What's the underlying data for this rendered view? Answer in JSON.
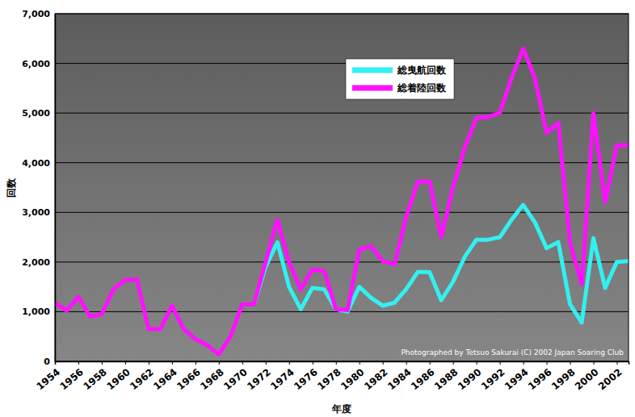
{
  "chart_data": {
    "type": "line",
    "x_label": "年度",
    "y_label": "回数",
    "annotations": [
      "Photographed by Tetsuo Sakurai (C) 2002 Japan Soaring Club"
    ],
    "x": [
      1954,
      1955,
      1956,
      1957,
      1958,
      1959,
      1960,
      1961,
      1962,
      1963,
      1964,
      1965,
      1966,
      1967,
      1968,
      1969,
      1970,
      1971,
      1972,
      1973,
      1974,
      1975,
      1976,
      1977,
      1978,
      1979,
      1980,
      1981,
      1982,
      1983,
      1984,
      1985,
      1986,
      1987,
      1988,
      1989,
      1990,
      1991,
      1992,
      1993,
      1994,
      1995,
      1996,
      1997,
      1998,
      1999,
      2000,
      2001,
      2002,
      2003
    ],
    "series": [
      {
        "name": "総曳航回数",
        "color": "#33f0f0",
        "values": [
          null,
          null,
          null,
          null,
          null,
          null,
          null,
          null,
          null,
          null,
          null,
          null,
          null,
          null,
          null,
          null,
          null,
          1150,
          1900,
          2400,
          1500,
          1050,
          1480,
          1450,
          1050,
          1000,
          1500,
          1280,
          1120,
          1180,
          1450,
          1800,
          1800,
          1230,
          1600,
          2100,
          2450,
          2450,
          2500,
          2850,
          3150,
          2800,
          2280,
          2400,
          1150,
          780,
          2480,
          1480,
          2000,
          2020
        ]
      },
      {
        "name": "総着陸回数",
        "color": "#ff10ff",
        "values": [
          1180,
          1020,
          1300,
          900,
          950,
          1450,
          1640,
          1650,
          650,
          650,
          1120,
          650,
          450,
          330,
          140,
          500,
          1150,
          1150,
          2000,
          2850,
          2000,
          1450,
          1850,
          1820,
          1050,
          1030,
          2250,
          2320,
          2020,
          1950,
          2900,
          3620,
          3620,
          2500,
          3500,
          4300,
          4900,
          4920,
          5000,
          5700,
          6300,
          5700,
          4600,
          4800,
          2400,
          1550,
          5000,
          3200,
          4350,
          4350
        ]
      }
    ],
    "xlim": [
      1954,
      2003
    ],
    "xticks": [
      1954,
      1956,
      1958,
      1960,
      1962,
      1964,
      1966,
      1968,
      1970,
      1972,
      1974,
      1976,
      1978,
      1980,
      1982,
      1984,
      1986,
      1988,
      1990,
      1992,
      1994,
      1996,
      1998,
      2000,
      2002
    ],
    "ylim": [
      0,
      7000
    ],
    "yticks": [
      0,
      {
        "value": 1000,
        "label": "1,000"
      },
      {
        "value": 2000,
        "label": "2,000"
      },
      {
        "value": 3000,
        "label": "3,000"
      },
      {
        "value": 4000,
        "label": "4,000"
      },
      {
        "value": 5000,
        "label": "5,000"
      },
      {
        "value": 6000,
        "label": "6,000"
      },
      {
        "value": 7000,
        "label": "7,000"
      }
    ],
    "grid": true,
    "legend": "top"
  }
}
